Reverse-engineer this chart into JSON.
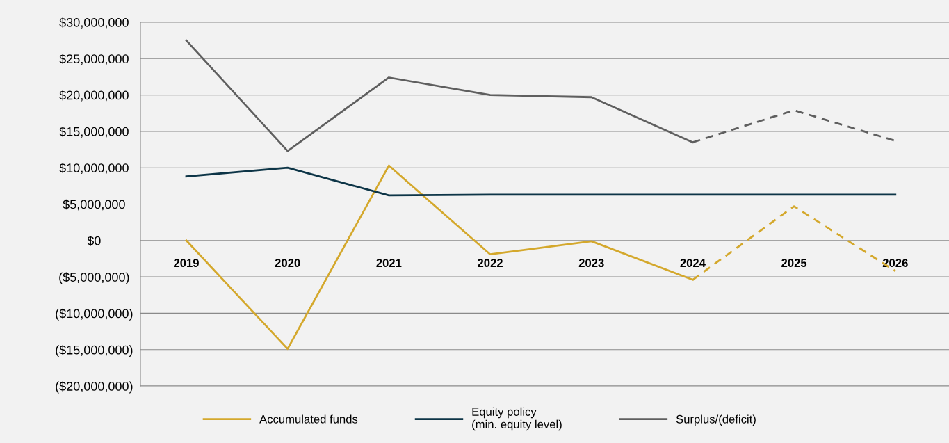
{
  "chart_data": {
    "type": "line",
    "categories": [
      "2019",
      "2020",
      "2021",
      "2022",
      "2023",
      "2024",
      "2025",
      "2026"
    ],
    "series": [
      {
        "name": "Accumulated funds",
        "color": "#d4a82c",
        "line_style": "solid",
        "values": [
          0,
          -14900000,
          10300000,
          -1900000,
          -100000,
          -5400000,
          null,
          null
        ]
      },
      {
        "color": "#d4a82c",
        "line_style": "dashed",
        "values": [
          null,
          null,
          null,
          null,
          null,
          -5400000,
          4700000,
          -4200000
        ]
      },
      {
        "name": "Equity policy\n(min. equity level)",
        "color": "#0d3547",
        "line_style": "solid",
        "values": [
          8800000,
          10000000,
          6200000,
          6300000,
          6300000,
          6300000,
          6300000,
          6300000
        ]
      },
      {
        "name": "Surplus/(deficit)",
        "color": "#5f5f5f",
        "line_style": "solid",
        "values": [
          27500000,
          12300000,
          22400000,
          20000000,
          19700000,
          13500000,
          null,
          null
        ]
      },
      {
        "color": "#5f5f5f",
        "line_style": "dashed",
        "values": [
          null,
          null,
          null,
          null,
          null,
          13500000,
          17900000,
          13700000
        ]
      }
    ],
    "ylim": [
      -20000000,
      30000000
    ],
    "yticks": [
      {
        "value": -20000000,
        "label": "($20,000,000)"
      },
      {
        "value": -15000000,
        "label": "($15,000,000)"
      },
      {
        "value": -10000000,
        "label": "($10,000,000)"
      },
      {
        "value": -5000000,
        "label": "($5,000,000)"
      },
      {
        "value": 0,
        "label": "$0"
      },
      {
        "value": 5000000,
        "label": "$5,000,000"
      },
      {
        "value": 10000000,
        "label": "$10,000,000"
      },
      {
        "value": 15000000,
        "label": "$15,000,000"
      },
      {
        "value": 20000000,
        "label": "$20,000,000"
      },
      {
        "value": 25000000,
        "label": "$25,000,000"
      },
      {
        "value": 30000000,
        "label": "$30,000,000"
      }
    ],
    "grid": "y",
    "legend": "bottom",
    "marker": "none"
  }
}
